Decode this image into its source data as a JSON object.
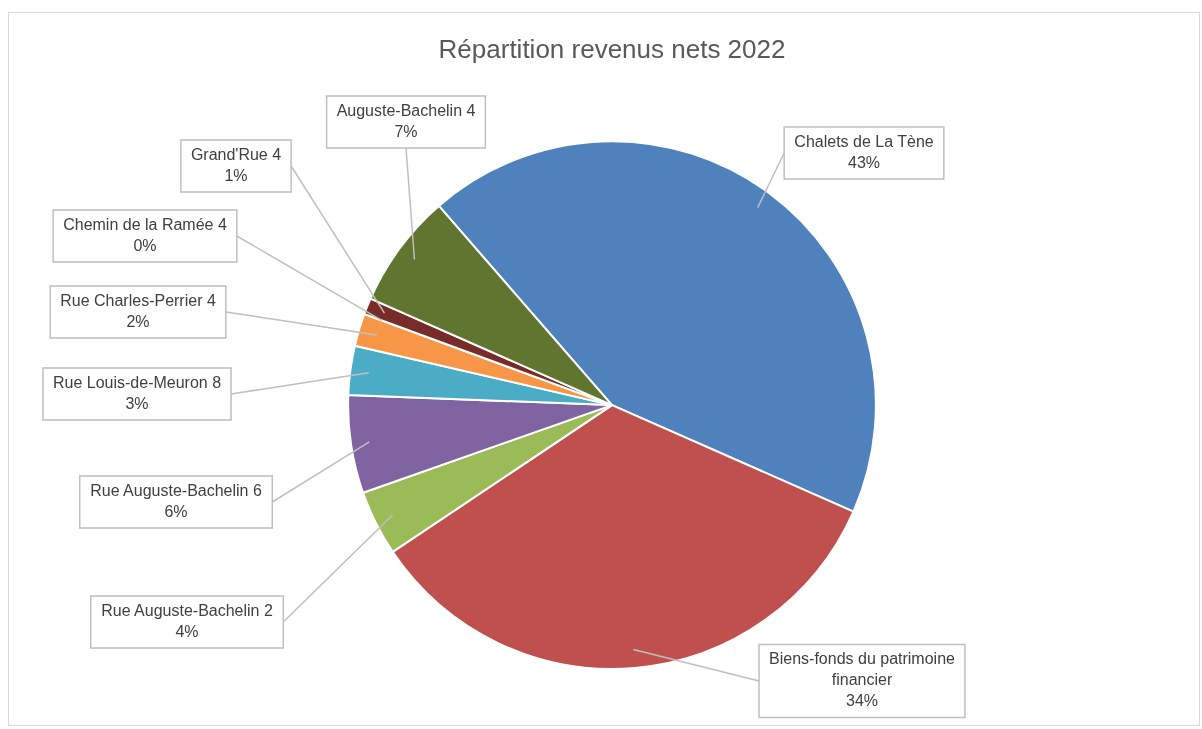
{
  "chart_data": {
    "type": "pie",
    "title": "Répartition revenus nets 2022",
    "categories": [
      "Chalets de La Tène",
      "Biens-fonds du patrimoine financier",
      "Rue Auguste-Bachelin 2",
      "Rue Auguste-Bachelin 6",
      "Rue Louis-de-Meuron 8",
      "Rue Charles-Perrier 4",
      "Chemin de la Ramée 4",
      "Grand'Rue 4",
      "Auguste-Bachelin 4"
    ],
    "values": [
      43,
      34,
      4,
      6,
      3,
      2,
      0,
      1,
      7
    ],
    "value_labels": [
      "43%",
      "34%",
      "4%",
      "6%",
      "3%",
      "2%",
      "0%",
      "1%",
      "7%"
    ],
    "colors": [
      "#4f81bd",
      "#c0504d",
      "#9bbb59",
      "#8064a2",
      "#4bacc6",
      "#f79646",
      "#2c4d75",
      "#772c2a",
      "#5f7530"
    ],
    "legend": false
  }
}
